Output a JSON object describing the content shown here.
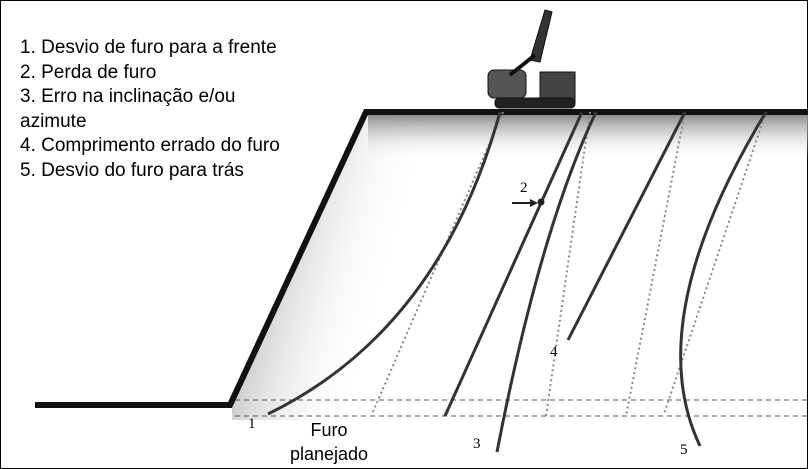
{
  "legend": {
    "items": [
      "1. Desvio de furo para a frente",
      "2. Perda de furo",
      "3. Erro na inclinação e/ou azimute",
      "4. Comprimento errado do furo",
      "5. Desvio do furo para trás"
    ]
  },
  "labels": {
    "hole_1": "1",
    "hole_2": "2",
    "hole_3": "3",
    "hole_4": "4",
    "hole_5": "5",
    "planned": "Furo planejado"
  }
}
